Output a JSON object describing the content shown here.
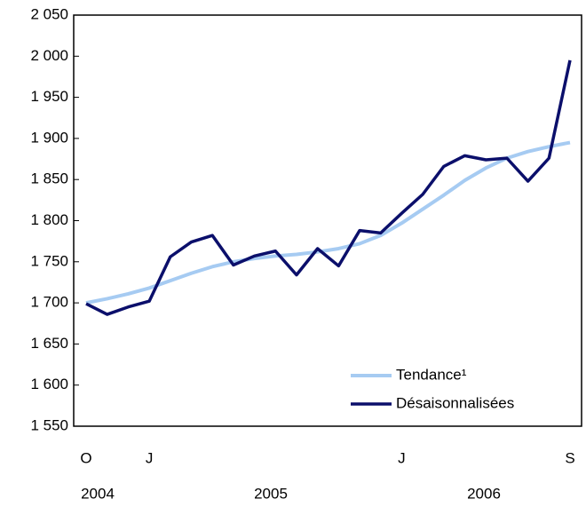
{
  "chart_data": {
    "type": "line",
    "categories": [
      "O",
      null,
      null,
      "J",
      null,
      null,
      null,
      null,
      null,
      null,
      null,
      null,
      null,
      null,
      null,
      "J",
      null,
      null,
      null,
      null,
      null,
      null,
      null,
      "S"
    ],
    "year_labels": [
      "2004",
      "2005",
      "2006"
    ],
    "series": [
      {
        "name": "Tendance¹",
        "color": "#a6cbf2",
        "values": [
          1700,
          1705,
          1711,
          1718,
          1727,
          1736,
          1744,
          1750,
          1754,
          1757,
          1759,
          1762,
          1766,
          1772,
          1782,
          1797,
          1814,
          1831,
          1849,
          1864,
          1876,
          1884,
          1890,
          1895
        ]
      },
      {
        "name": "Désaisonnalisées",
        "color": "#0b0f6b",
        "values": [
          1699,
          1686,
          1695,
          1702,
          1756,
          1774,
          1782,
          1746,
          1757,
          1763,
          1734,
          1766,
          1745,
          1788,
          1785,
          1809,
          1832,
          1866,
          1879,
          1874,
          1876,
          1848,
          1876,
          1995
        ]
      }
    ],
    "ylim": [
      1550,
      2050
    ],
    "yticks": [
      {
        "value": 1550,
        "label": "1 550"
      },
      {
        "value": 1600,
        "label": "1 600"
      },
      {
        "value": 1650,
        "label": "1 650"
      },
      {
        "value": 1700,
        "label": "1 700"
      },
      {
        "value": 1750,
        "label": "1 750"
      },
      {
        "value": 1800,
        "label": "1 800"
      },
      {
        "value": 1850,
        "label": "1 850"
      },
      {
        "value": 1900,
        "label": "1 900"
      },
      {
        "value": 1950,
        "label": "1 950"
      },
      {
        "value": 2000,
        "label": "2 000"
      },
      {
        "value": 2050,
        "label": "2 050"
      }
    ],
    "grid": false,
    "legend": "lower right"
  }
}
